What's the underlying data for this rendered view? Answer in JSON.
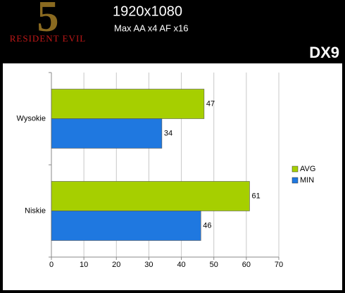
{
  "logo": {
    "number": "5",
    "text": "RESIDENT EVIL"
  },
  "chart_data": {
    "type": "hbar",
    "title": "1920x1080",
    "subtitle": "Max AA x4 AF x16",
    "annotation": "DX9",
    "categories": [
      "Wysokie",
      "Niskie"
    ],
    "series": [
      {
        "name": "AVG",
        "color": "#a6cf00",
        "values": [
          47,
          61
        ]
      },
      {
        "name": "MIN",
        "color": "#1f78e0",
        "values": [
          34,
          46
        ]
      }
    ],
    "xlim": [
      0,
      70
    ],
    "xticks": [
      0,
      10,
      20,
      30,
      40,
      50,
      60,
      70
    ],
    "grid": true,
    "legend": "right"
  }
}
